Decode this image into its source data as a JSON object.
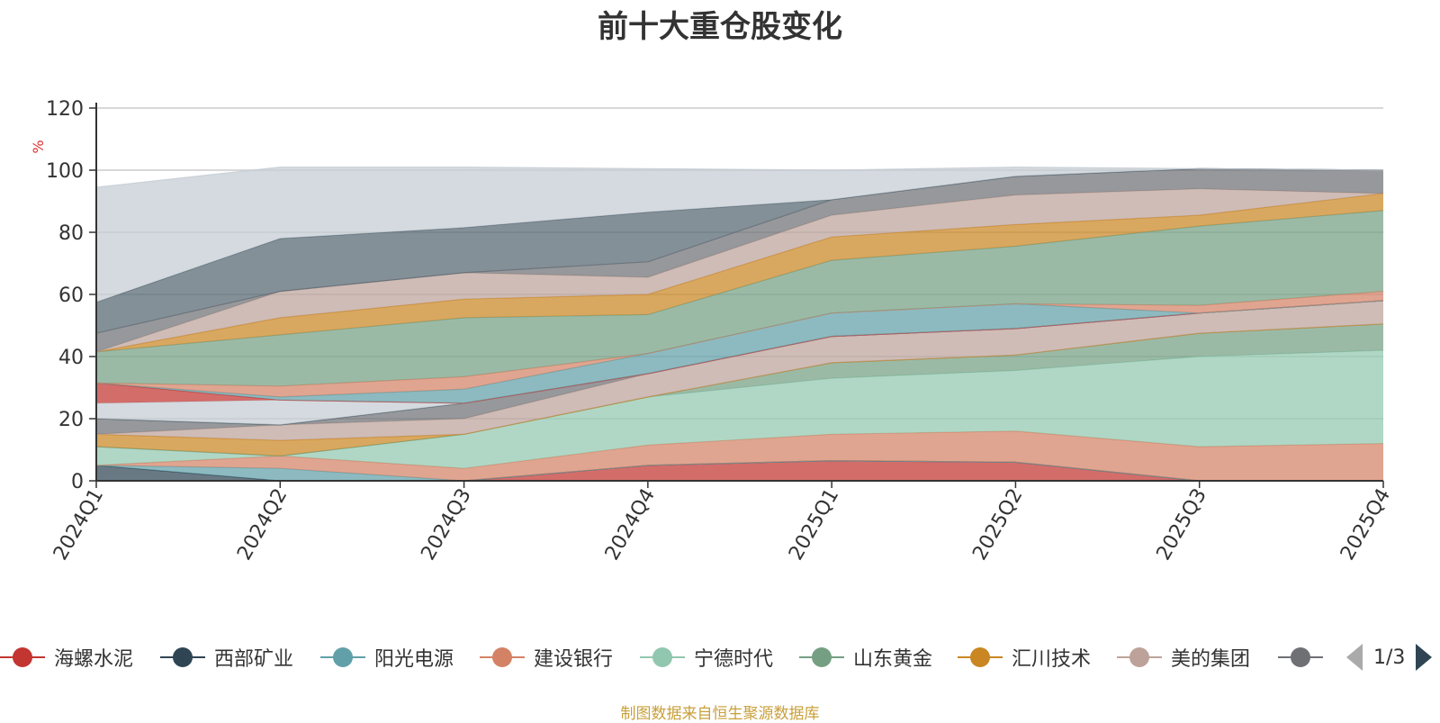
{
  "title": "前十大重仓股变化",
  "source_note": "制图数据来自恒生聚源数据库",
  "legend_page": "1/3",
  "chart_data": {
    "type": "area",
    "stacked": true,
    "title": "前十大重仓股变化",
    "ylabel": "%",
    "ylim": [
      0,
      120
    ],
    "yticks": [
      0,
      20,
      40,
      60,
      80,
      100,
      120
    ],
    "grid": true,
    "legend_position": "bottom",
    "categories": [
      "2024Q1",
      "2024Q2",
      "2024Q3",
      "2024Q4",
      "2025Q1",
      "2025Q2",
      "2025Q3",
      "2025Q4"
    ],
    "series": [
      {
        "name": "海螺水泥",
        "color": "#c23531",
        "values": [
          0,
          0,
          0,
          5,
          6.5,
          6,
          0,
          0
        ]
      },
      {
        "name": "西部矿业",
        "color": "#2f4554",
        "values": [
          5,
          0,
          0,
          0,
          0,
          0,
          0,
          0
        ]
      },
      {
        "name": "阳光电源",
        "color": "#61a0a8",
        "values": [
          0,
          4,
          0,
          0,
          0,
          0,
          0,
          0
        ]
      },
      {
        "name": "建设银行",
        "color": "#d48265",
        "values": [
          0,
          4,
          4,
          6.5,
          8.5,
          10,
          11,
          12
        ]
      },
      {
        "name": "宁德时代",
        "color": "#91c7ae",
        "values": [
          6,
          0,
          11,
          15.5,
          18,
          19.5,
          29,
          30
        ]
      },
      {
        "name": "山东黄金",
        "color": "#749f83",
        "values": [
          0,
          0,
          0,
          0,
          5,
          5,
          7.5,
          8.5
        ]
      },
      {
        "name": "汇川技术",
        "color": "#ca8622",
        "values": [
          4,
          5,
          0,
          0,
          0,
          0,
          0,
          0
        ]
      },
      {
        "name": "美的集团",
        "color": "#bda29a",
        "values": [
          0,
          5,
          5,
          7.5,
          8.5,
          8.5,
          6.5,
          7.5
        ]
      },
      {
        "name": "",
        "color": "#6e7074",
        "values": [
          5,
          0,
          5,
          0,
          0,
          0,
          0,
          0
        ]
      },
      {
        "name": "",
        "color": "#546570",
        "values": [
          0,
          0,
          0,
          0,
          0,
          0,
          0,
          0
        ]
      },
      {
        "name": "",
        "color": "#c4ccd3",
        "values": [
          5,
          8,
          0,
          0,
          0,
          0,
          0,
          0
        ]
      },
      {
        "name": "",
        "color": "#c23531",
        "values": [
          6.5,
          0,
          0,
          0,
          0,
          0,
          0,
          0
        ]
      },
      {
        "name": "",
        "color": "#61a0a8",
        "values": [
          0,
          1,
          4.5,
          6.5,
          7.5,
          8,
          0,
          0
        ]
      },
      {
        "name": "",
        "color": "#d48265",
        "values": [
          0,
          3.5,
          4,
          0,
          0,
          0,
          2.5,
          3
        ]
      },
      {
        "name": "",
        "color": "#749f83",
        "values": [
          10,
          16.5,
          19,
          12.5,
          17,
          18.5,
          25.5,
          26
        ]
      },
      {
        "name": "",
        "color": "#ca8622",
        "values": [
          0,
          5.5,
          6,
          6.5,
          7.5,
          7,
          3.5,
          5.5
        ]
      },
      {
        "name": "",
        "color": "#bda29a",
        "values": [
          0,
          8.5,
          8.5,
          5.5,
          7,
          9.5,
          8.5,
          0
        ]
      },
      {
        "name": "",
        "color": "#6e7074",
        "values": [
          6,
          0,
          0,
          5,
          5,
          6,
          6.5,
          7.5
        ]
      },
      {
        "name": "",
        "color": "#546570",
        "values": [
          10,
          17,
          14.5,
          16,
          0,
          0,
          0,
          0
        ]
      },
      {
        "name": "",
        "color": "#c4ccd3",
        "values": [
          37,
          23,
          19.5,
          14,
          9.5,
          3,
          0,
          0
        ]
      }
    ]
  }
}
